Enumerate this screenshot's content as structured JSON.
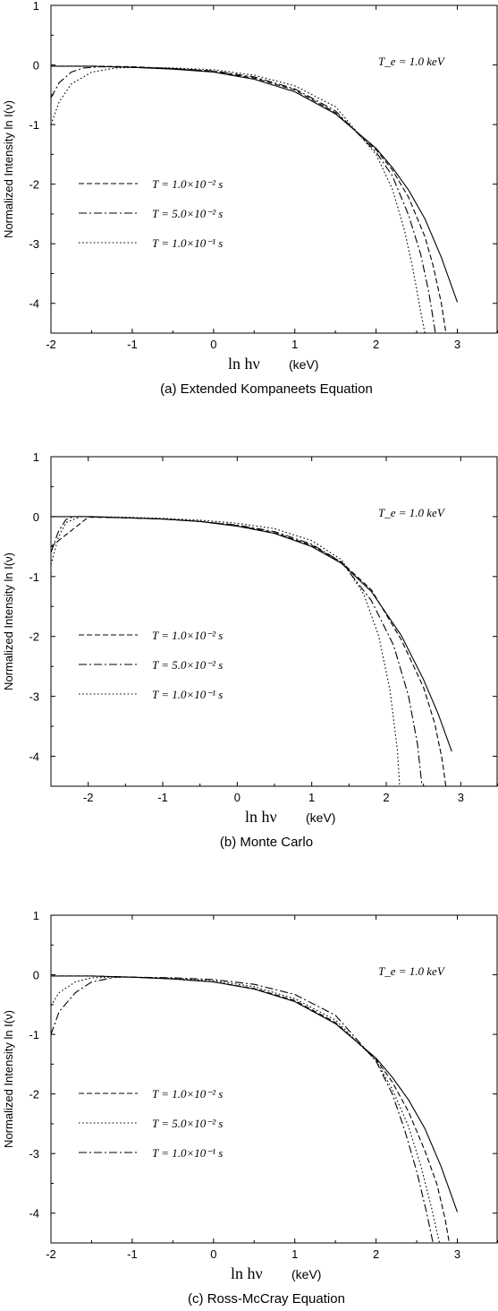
{
  "chart_data": [
    {
      "type": "line",
      "caption": "(a)  Extended Kompaneets Equation",
      "ylabel": "Normalized  Intensity   ln I(ν)",
      "xlabel_symbol": "ln hν",
      "xlabel_unit": "(keV)",
      "temperature_label": "T_e = 1.0 keV",
      "xlim": [
        -2,
        3.5
      ],
      "ylim": [
        -4.5,
        1
      ],
      "xticks": [
        -2,
        -1,
        0,
        1,
        2,
        3
      ],
      "yticks": [
        1,
        0,
        -1,
        -2,
        -3,
        -4
      ],
      "legend": [
        "T = 1.0×10⁻² s",
        "T = 5.0×10⁻² s",
        "T = 1.0×10⁻¹ s"
      ],
      "series": [
        {
          "style": "solid",
          "x": [
            -2,
            -1.5,
            -1,
            -0.5,
            0,
            0.5,
            1,
            1.5,
            2,
            2.2,
            2.4,
            2.6,
            2.8,
            3.0
          ],
          "y": [
            -0.02,
            -0.02,
            -0.04,
            -0.07,
            -0.12,
            -0.24,
            -0.45,
            -0.82,
            -1.4,
            -1.72,
            -2.1,
            -2.58,
            -3.22,
            -3.98
          ]
        },
        {
          "style": "dash",
          "x": [
            -2,
            -1.5,
            -1,
            -0.5,
            0,
            0.5,
            1,
            1.5,
            2,
            2.2,
            2.4,
            2.6,
            2.7,
            2.8,
            2.86
          ],
          "y": [
            -0.02,
            -0.02,
            -0.03,
            -0.06,
            -0.11,
            -0.22,
            -0.42,
            -0.8,
            -1.42,
            -1.76,
            -2.22,
            -2.88,
            -3.36,
            -3.98,
            -4.5
          ]
        },
        {
          "style": "dashdot",
          "x": [
            -2,
            -1.9,
            -1.75,
            -1.6,
            -1.4,
            -1,
            -0.5,
            0,
            0.5,
            1,
            1.5,
            2,
            2.2,
            2.4,
            2.55,
            2.65,
            2.73
          ],
          "y": [
            -0.55,
            -0.3,
            -0.12,
            -0.05,
            -0.03,
            -0.04,
            -0.06,
            -0.1,
            -0.2,
            -0.4,
            -0.77,
            -1.46,
            -1.86,
            -2.52,
            -3.18,
            -3.82,
            -4.5
          ]
        },
        {
          "style": "dot",
          "x": [
            -2,
            -1.9,
            -1.75,
            -1.5,
            -1.2,
            -1,
            -0.5,
            0,
            0.5,
            1,
            1.5,
            2,
            2.2,
            2.35,
            2.45,
            2.53,
            2.6
          ],
          "y": [
            -1.0,
            -0.62,
            -0.32,
            -0.12,
            -0.05,
            -0.04,
            -0.05,
            -0.08,
            -0.17,
            -0.35,
            -0.7,
            -1.5,
            -2.08,
            -2.78,
            -3.4,
            -4.0,
            -4.5
          ]
        }
      ]
    },
    {
      "type": "line",
      "caption": "(b)  Monte Carlo",
      "ylabel": "Normalized  Intensity   ln I(ν)",
      "xlabel_symbol": "ln hν",
      "xlabel_unit": "(keV)",
      "temperature_label": "T_e = 1.0 keV",
      "xlim": [
        -2.5,
        3.5
      ],
      "ylim": [
        -4.5,
        1
      ],
      "xticks": [
        -2,
        -1,
        0,
        1,
        2,
        3
      ],
      "yticks": [
        1,
        0,
        -1,
        -2,
        -3,
        -4
      ],
      "legend": [
        "T = 1.0×10⁻² s",
        "T = 5.0×10⁻² s",
        "T = 1.0×10⁻¹ s"
      ],
      "series": [
        {
          "style": "solid",
          "x": [
            -2.5,
            -2,
            -1.5,
            -1,
            -0.5,
            0,
            0.5,
            1,
            1.4,
            1.8,
            2.2,
            2.5,
            2.7,
            2.88
          ],
          "y": [
            0.0,
            0.0,
            -0.02,
            -0.04,
            -0.08,
            -0.16,
            -0.28,
            -0.5,
            -0.78,
            -1.25,
            -1.98,
            -2.72,
            -3.3,
            -3.92
          ]
        },
        {
          "style": "dash",
          "x": [
            -2.5,
            -2,
            -1.5,
            -1,
            -0.5,
            0,
            0.5,
            1,
            1.4,
            1.8,
            2.2,
            2.5,
            2.65,
            2.75,
            2.8
          ],
          "y": [
            -0.5,
            -0.01,
            -0.02,
            -0.04,
            -0.08,
            -0.15,
            -0.27,
            -0.48,
            -0.76,
            -1.22,
            -2.05,
            -2.85,
            -3.45,
            -4.05,
            -4.5
          ]
        },
        {
          "style": "dashdot",
          "x": [
            -2.5,
            -2.4,
            -2.3,
            -2.2,
            -2.0,
            -1.5,
            -1,
            -0.5,
            0,
            0.5,
            1,
            1.4,
            1.8,
            2.1,
            2.3,
            2.42,
            2.48
          ],
          "y": [
            -0.6,
            -0.25,
            -0.05,
            0.0,
            0.0,
            -0.02,
            -0.04,
            -0.08,
            -0.14,
            -0.25,
            -0.46,
            -0.76,
            -1.4,
            -2.15,
            -3.0,
            -3.8,
            -4.5
          ]
        },
        {
          "style": "dot",
          "x": [
            -2.5,
            -2.4,
            -2.3,
            -2.1,
            -2.0,
            -1.5,
            -1,
            -0.5,
            0,
            0.5,
            1,
            1.4,
            1.7,
            1.9,
            2.05,
            2.15,
            2.18
          ],
          "y": [
            -0.8,
            -0.35,
            -0.1,
            0.0,
            0.0,
            -0.01,
            -0.03,
            -0.06,
            -0.11,
            -0.2,
            -0.4,
            -0.72,
            -1.3,
            -2.0,
            -2.9,
            -3.9,
            -4.5
          ]
        }
      ]
    },
    {
      "type": "line",
      "caption": "(c)  Ross-McCray Equation",
      "ylabel": "Normalized  Intensity   ln I(ν)",
      "xlabel_symbol": "ln hν",
      "xlabel_unit": "(keV)",
      "temperature_label": "T_e = 1.0 keV",
      "xlim": [
        -2,
        3.5
      ],
      "ylim": [
        -4.5,
        1
      ],
      "xticks": [
        -2,
        -1,
        0,
        1,
        2,
        3
      ],
      "yticks": [
        1,
        0,
        -1,
        -2,
        -3,
        -4
      ],
      "legend": [
        "T = 1.0×10⁻² s",
        "T = 5.0×10⁻² s",
        "T = 1.0×10⁻¹ s"
      ],
      "series": [
        {
          "style": "solid",
          "x": [
            -2,
            -1.5,
            -1,
            -0.5,
            0,
            0.5,
            1,
            1.5,
            2,
            2.2,
            2.4,
            2.6,
            2.8,
            3.0
          ],
          "y": [
            -0.02,
            -0.02,
            -0.04,
            -0.07,
            -0.12,
            -0.24,
            -0.45,
            -0.82,
            -1.4,
            -1.72,
            -2.1,
            -2.58,
            -3.22,
            -3.98
          ]
        },
        {
          "style": "dash",
          "x": [
            -2,
            -1.5,
            -1,
            -0.5,
            0,
            0.5,
            1,
            1.5,
            2,
            2.2,
            2.4,
            2.6,
            2.75,
            2.85,
            2.9
          ],
          "y": [
            -0.02,
            -0.02,
            -0.04,
            -0.07,
            -0.12,
            -0.23,
            -0.43,
            -0.8,
            -1.42,
            -1.8,
            -2.3,
            -2.95,
            -3.52,
            -4.1,
            -4.5
          ]
        },
        {
          "style": "dot",
          "x": [
            -2,
            -1.9,
            -1.7,
            -1.5,
            -1.2,
            -1,
            -0.5,
            0,
            0.5,
            1,
            1.5,
            2,
            2.2,
            2.4,
            2.55,
            2.68,
            2.78
          ],
          "y": [
            -0.52,
            -0.3,
            -0.12,
            -0.05,
            -0.04,
            -0.04,
            -0.06,
            -0.1,
            -0.2,
            -0.4,
            -0.76,
            -1.44,
            -1.92,
            -2.55,
            -3.2,
            -3.9,
            -4.5
          ]
        },
        {
          "style": "dashdot",
          "x": [
            -2,
            -1.9,
            -1.7,
            -1.5,
            -1.2,
            -1,
            -0.5,
            0,
            0.5,
            1,
            1.5,
            2,
            2.2,
            2.35,
            2.5,
            2.62,
            2.7
          ],
          "y": [
            -1.0,
            -0.62,
            -0.3,
            -0.12,
            -0.04,
            -0.04,
            -0.05,
            -0.08,
            -0.16,
            -0.33,
            -0.68,
            -1.45,
            -2.0,
            -2.6,
            -3.3,
            -3.98,
            -4.5
          ]
        }
      ]
    }
  ],
  "styles": {
    "line_color": "#000000",
    "background": "#ffffff"
  }
}
